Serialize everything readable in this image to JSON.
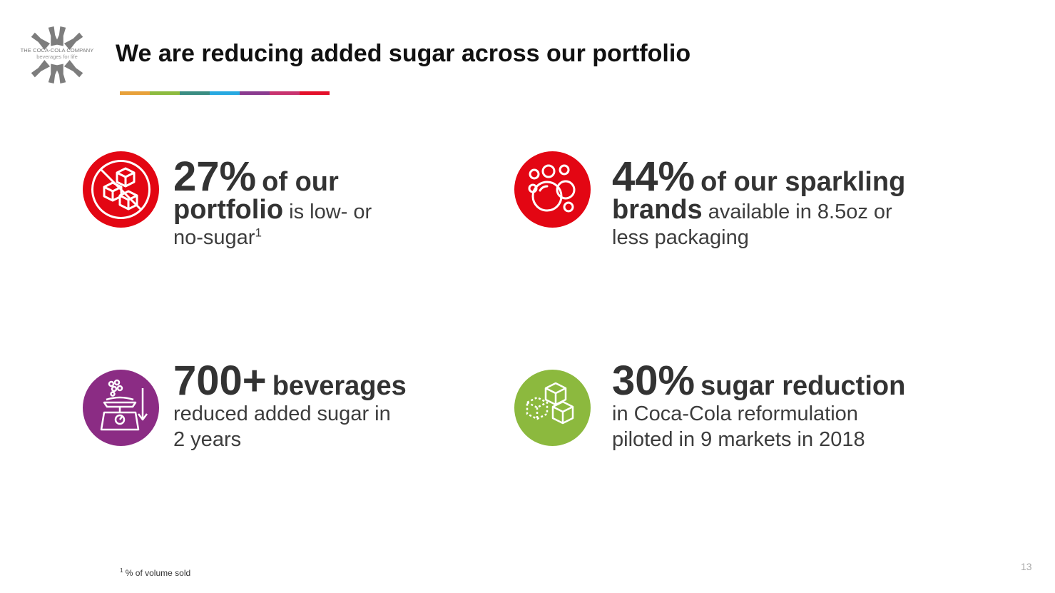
{
  "logo": {
    "company": "THE COCA-COLA COMPANY",
    "tagline": "beverages for life"
  },
  "title": "We are reducing added sugar across our portfolio",
  "title_bar_colors": [
    "#e8a13a",
    "#8dbb3f",
    "#3a8d82",
    "#27a9e1",
    "#8a3b8f",
    "#c8336f",
    "#e4102a"
  ],
  "stats": [
    {
      "icon": "no-sugar-cubes-icon",
      "color": "#e30613",
      "big": "27%",
      "bold1": "of our",
      "bold2": "portfolio",
      "rest1": "is low- or",
      "rest2": "no-sugar",
      "sup": "1"
    },
    {
      "icon": "bubbles-icon",
      "color": "#e30613",
      "big": "44%",
      "bold1": "of our sparkling",
      "bold2": "brands",
      "rest1": "available in 8.5oz or",
      "rest2": "less packaging"
    },
    {
      "icon": "sugar-scale-icon",
      "color": "#8b2c84",
      "big": "700+",
      "bold1": "beverages",
      "rest1": "reduced added sugar in",
      "rest2": "2 years"
    },
    {
      "icon": "sugar-cubes-icon",
      "color": "#8cb93e",
      "big": "30%",
      "bold1": "sugar reduction",
      "rest1": "in Coca-Cola reformulation",
      "rest2": "piloted in 9 markets in 2018"
    }
  ],
  "footnote": {
    "mark": "1",
    "text": " % of volume sold"
  },
  "page_number": "13"
}
